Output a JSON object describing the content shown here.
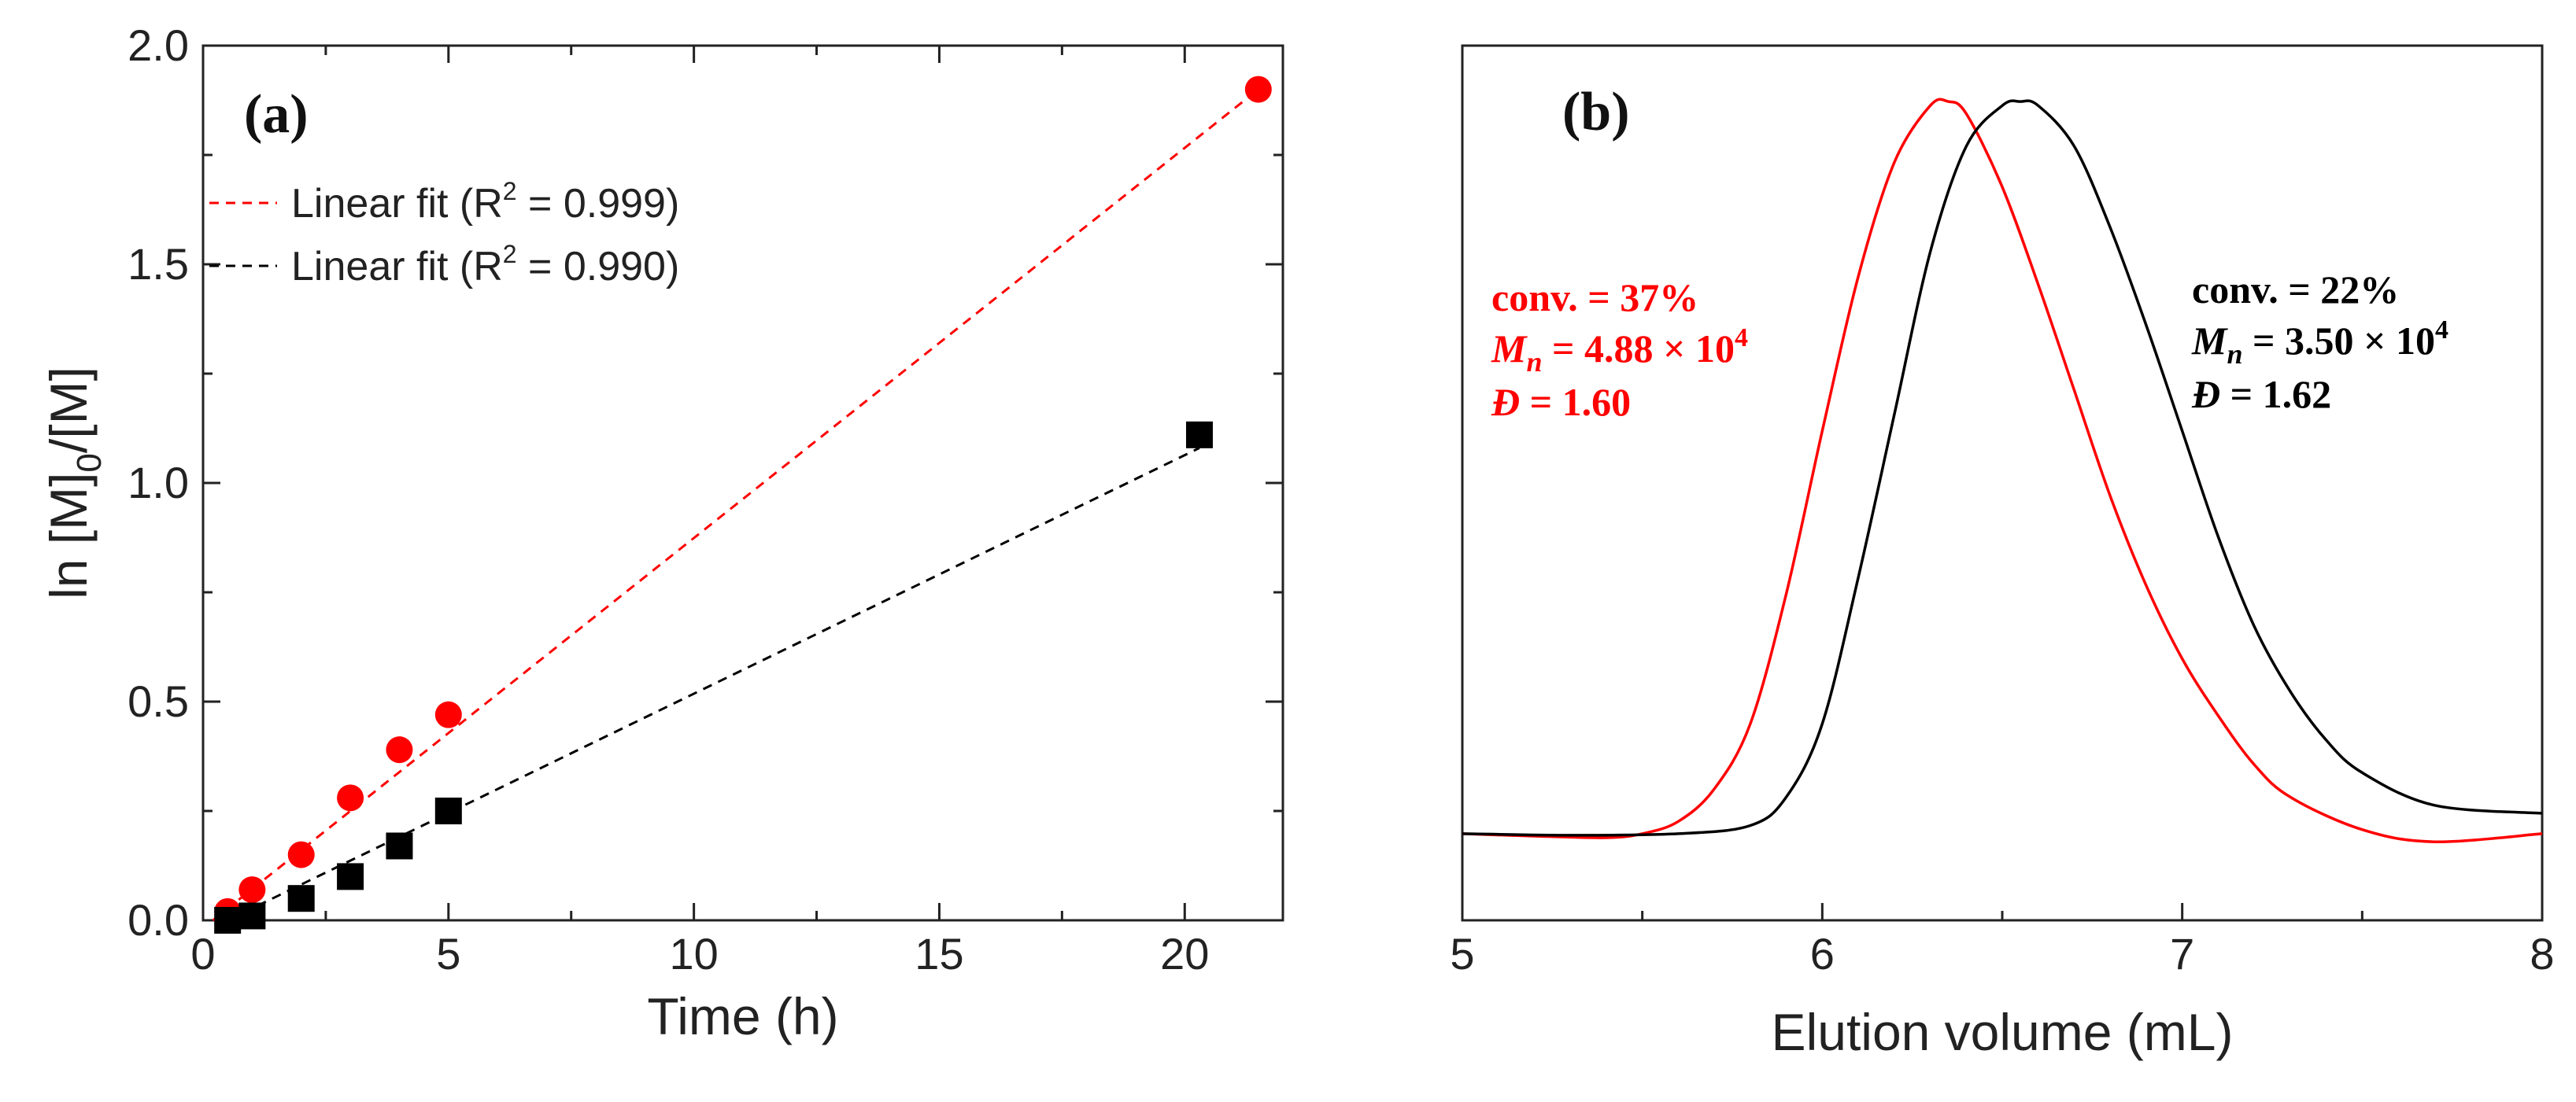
{
  "chart_data": [
    {
      "panel_label": "(a)",
      "type": "scatter",
      "xlabel": "Time (h)",
      "ylabel": "ln [M]0/[M]",
      "ylabel_parts": {
        "main": "ln [M]",
        "sub": "0",
        "tail": "/[M]"
      },
      "xlim": [
        0,
        22
      ],
      "ylim": [
        0,
        2.0
      ],
      "x_ticks": [
        "0",
        "5",
        "10",
        "15",
        "20"
      ],
      "y_ticks": [
        "0.0",
        "0.5",
        "1.0",
        "1.5",
        "2.0"
      ],
      "grid": false,
      "legend": [
        {
          "label": "Linear fit (R2 = 0.999)",
          "text": "Linear fit (R",
          "sup": "2",
          "tail": " = 0.999)",
          "color": "#ff0000"
        },
        {
          "label": "Linear fit (R2 = 0.990)",
          "text": "Linear fit (R",
          "sup": "2",
          "tail": " = 0.990)",
          "color": "#000000"
        }
      ],
      "series": [
        {
          "name": "red (circles)",
          "marker": "circle",
          "color": "#ff0000",
          "x": [
            0.5,
            1.0,
            2.0,
            3.0,
            4.0,
            5.0,
            21.5
          ],
          "y": [
            0.02,
            0.07,
            0.15,
            0.28,
            0.39,
            0.47,
            1.9
          ],
          "fit": {
            "x": [
              0.2,
              21.5
            ],
            "y": [
              0.0,
              1.9
            ]
          }
        },
        {
          "name": "black (squares)",
          "marker": "square",
          "color": "#000000",
          "x": [
            0.5,
            1.0,
            2.0,
            3.0,
            4.0,
            5.0,
            20.3
          ],
          "y": [
            0.0,
            0.01,
            0.05,
            0.1,
            0.17,
            0.25,
            1.11
          ],
          "fit": {
            "x": [
              0.5,
              20.3
            ],
            "y": [
              0.0,
              1.08
            ]
          }
        }
      ]
    },
    {
      "panel_label": "(b)",
      "type": "line",
      "xlabel": "Elution volume (mL)",
      "ylabel": "",
      "xlim": [
        5,
        8
      ],
      "ylim": [
        0,
        1
      ],
      "x_ticks": [
        "5",
        "6",
        "7",
        "8"
      ],
      "grid": false,
      "annotations": [
        {
          "color": "#ff0000",
          "conv": "conv. = 37%",
          "mn_label": "M",
          "mn_sub": "n",
          "mn_value": " = 4.88 × 10",
          "mn_exp": "4",
          "d_label": "Đ",
          "d_value": " = 1.60"
        },
        {
          "color": "#000000",
          "conv": "conv. = 22%",
          "mn_label": "M",
          "mn_sub": "n",
          "mn_value": " = 3.50 × 10",
          "mn_exp": "4",
          "d_label": "Đ",
          "d_value": " = 1.62"
        }
      ],
      "series": [
        {
          "name": "red trace (conv. = 37%)",
          "color": "#ff0000",
          "x": [
            5.0,
            5.2,
            5.4,
            5.5,
            5.6,
            5.7,
            5.8,
            5.9,
            6.0,
            6.1,
            6.2,
            6.3,
            6.35,
            6.4,
            6.5,
            6.6,
            6.7,
            6.8,
            6.9,
            7.0,
            7.1,
            7.2,
            7.3,
            7.5,
            7.7,
            8.0
          ],
          "y": [
            0.085,
            0.082,
            0.08,
            0.085,
            0.1,
            0.14,
            0.22,
            0.38,
            0.58,
            0.77,
            0.91,
            0.98,
            0.985,
            0.97,
            0.88,
            0.76,
            0.63,
            0.5,
            0.39,
            0.3,
            0.23,
            0.17,
            0.13,
            0.09,
            0.075,
            0.085
          ]
        },
        {
          "name": "black trace (conv. = 22%)",
          "color": "#000000",
          "x": [
            5.0,
            5.3,
            5.6,
            5.8,
            5.9,
            6.0,
            6.1,
            6.2,
            6.3,
            6.4,
            6.5,
            6.55,
            6.6,
            6.7,
            6.8,
            6.9,
            7.0,
            7.1,
            7.2,
            7.3,
            7.4,
            7.5,
            7.7,
            8.0
          ],
          "y": [
            0.085,
            0.083,
            0.085,
            0.095,
            0.13,
            0.22,
            0.4,
            0.6,
            0.8,
            0.93,
            0.98,
            0.985,
            0.98,
            0.93,
            0.83,
            0.71,
            0.58,
            0.45,
            0.34,
            0.26,
            0.2,
            0.16,
            0.12,
            0.11
          ]
        }
      ]
    }
  ]
}
